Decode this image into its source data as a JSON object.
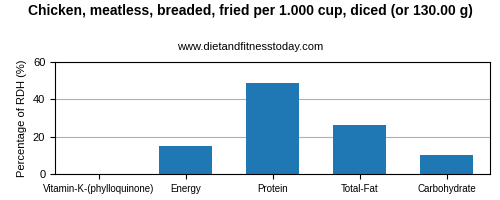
{
  "chart_data": {
    "type": "bar",
    "title": "Chicken, meatless, breaded, fried per 1.000 cup, diced (or 130.00 g)",
    "subtitle": "www.dietandfitnesstoday.com",
    "categories": [
      "Vitamin-K-(phylloquinone)",
      "Energy",
      "Protein",
      "Total-Fat",
      "Carbohydrate"
    ],
    "values": [
      0,
      15,
      49,
      26,
      10
    ],
    "ylabel": "Percentage of RDH (%)",
    "ylim": [
      0,
      60
    ],
    "yticks": [
      0,
      20,
      40,
      60
    ],
    "grid": true
  }
}
